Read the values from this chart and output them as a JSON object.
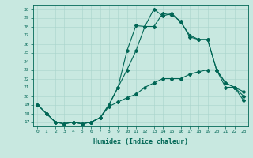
{
  "bg_color": "#c8e8e0",
  "line_color": "#006655",
  "grid_color": "#a8d4cc",
  "xlabel": "Humidex (Indice chaleur)",
  "xlim": [
    -0.5,
    23.5
  ],
  "ylim": [
    16.5,
    30.5
  ],
  "yticks": [
    17,
    18,
    19,
    20,
    21,
    22,
    23,
    24,
    25,
    26,
    27,
    28,
    29,
    30
  ],
  "xticks": [
    0,
    1,
    2,
    3,
    4,
    5,
    6,
    7,
    8,
    9,
    10,
    11,
    12,
    13,
    14,
    15,
    16,
    17,
    18,
    19,
    20,
    21,
    22,
    23
  ],
  "line1_x": [
    0,
    1,
    2,
    3,
    4,
    5,
    6,
    7,
    8,
    9,
    10,
    11,
    12,
    13,
    14,
    15,
    16,
    17,
    18,
    19,
    20,
    21,
    22,
    23
  ],
  "line1_y": [
    19,
    18,
    17,
    16.8,
    17,
    16.8,
    17,
    17.5,
    19,
    21,
    25.2,
    28.1,
    28,
    30,
    29.2,
    29.5,
    28.5,
    27,
    26.5,
    26.5,
    23,
    21,
    21,
    19.5
  ],
  "line2_x": [
    0,
    1,
    2,
    3,
    4,
    5,
    6,
    7,
    8,
    9,
    10,
    11,
    12,
    13,
    14,
    15,
    16,
    17,
    18,
    19,
    20,
    21,
    22,
    23
  ],
  "line2_y": [
    19,
    18,
    17,
    16.8,
    17,
    16.8,
    17,
    17.5,
    19,
    21,
    23,
    25.2,
    28,
    28,
    29.5,
    29.3,
    28.6,
    26.8,
    26.5,
    26.5,
    23,
    21.5,
    21,
    20
  ],
  "line3_x": [
    0,
    1,
    2,
    3,
    4,
    5,
    6,
    7,
    8,
    9,
    10,
    11,
    12,
    13,
    14,
    15,
    16,
    17,
    18,
    19,
    20,
    21,
    22,
    23
  ],
  "line3_y": [
    19,
    18,
    17,
    16.8,
    17,
    16.8,
    17,
    17.5,
    18.8,
    19.3,
    19.8,
    20.2,
    21,
    21.5,
    22,
    22,
    22,
    22.5,
    22.8,
    23,
    23,
    21.5,
    21,
    20.5
  ]
}
